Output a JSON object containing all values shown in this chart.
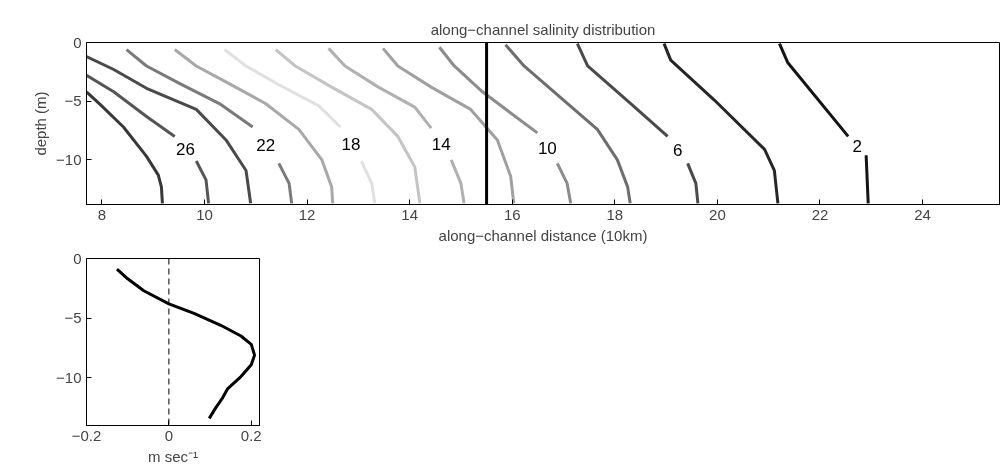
{
  "chart_data": [
    {
      "type": "line",
      "title": "along−channel salinity distribution",
      "xlabel": "along−channel distance (10km)",
      "ylabel": "depth (m)",
      "xlim": [
        7.7,
        25.5
      ],
      "ylim": [
        -13.8,
        0
      ],
      "xticks": [
        8,
        10,
        12,
        14,
        16,
        18,
        20,
        22,
        24
      ],
      "yticks": [
        0,
        -5,
        -10
      ],
      "grid": false,
      "line_style": "solid",
      "marker": "none",
      "series": [
        {
          "color": "#383838",
          "x": [
            7.7,
            7.97,
            8.42,
            8.87,
            9.1,
            9.16,
            9.18
          ],
          "values": [
            -4.2,
            -5.3,
            -7.2,
            -9.7,
            -11.3,
            -12.3,
            -13.7
          ]
        },
        {
          "name": "26",
          "color": "#555555",
          "x": [
            7.7,
            8.23,
            8.87,
            9.42,
            null,
            9.84,
            10.03,
            10.08
          ],
          "values": [
            -2.8,
            -4.2,
            -6.3,
            -8.0,
            null,
            -10.1,
            -11.7,
            -13.7
          ]
        },
        {
          "color": "#4a4a4a",
          "x": [
            7.7,
            8.23,
            8.87,
            9.84,
            10.42,
            10.81,
            10.9
          ],
          "values": [
            -1.2,
            -2.3,
            -3.9,
            -5.7,
            -8.3,
            -10.9,
            -13.7
          ]
        },
        {
          "name": "22",
          "color": "#7a7a7a",
          "x": [
            8.48,
            8.87,
            9.52,
            10.29,
            10.94,
            null,
            11.45,
            11.65,
            11.7
          ],
          "values": [
            -0.6,
            -2.0,
            -3.5,
            -5.2,
            -7.2,
            null,
            -10.3,
            -12.0,
            -13.7
          ]
        },
        {
          "color": "#a8a8a8",
          "x": [
            9.42,
            9.84,
            10.48,
            11.19,
            11.84,
            12.29,
            12.48,
            12.5
          ],
          "values": [
            -0.6,
            -2.0,
            -3.5,
            -5.2,
            -7.4,
            -10.0,
            -12.3,
            -13.7
          ]
        },
        {
          "name": "18",
          "color": "#e0e0e0",
          "x": [
            10.39,
            10.81,
            11.45,
            12.23,
            12.65,
            null,
            13.06,
            13.26,
            13.32
          ],
          "values": [
            -0.6,
            -2.0,
            -3.6,
            -5.4,
            -7.2,
            null,
            -10.1,
            -12.0,
            -13.7
          ]
        },
        {
          "color": "#c4c4c4",
          "x": [
            11.39,
            11.77,
            12.48,
            13.26,
            13.77,
            14.1,
            14.2
          ],
          "values": [
            -0.6,
            -2.0,
            -3.8,
            -5.7,
            -8.0,
            -10.6,
            -13.7
          ]
        },
        {
          "name": "14",
          "color": "#b0b0b0",
          "x": [
            12.42,
            12.74,
            13.39,
            14.1,
            14.42,
            null,
            14.81,
            15.0,
            15.06
          ],
          "values": [
            -0.5,
            -2.0,
            -3.8,
            -5.5,
            -7.3,
            null,
            -10.0,
            -12.0,
            -13.7
          ]
        },
        {
          "color": "#a0a0a0",
          "x": [
            13.48,
            13.77,
            14.42,
            15.19,
            15.71,
            15.97,
            16.03
          ],
          "values": [
            -0.5,
            -2.0,
            -3.8,
            -5.7,
            -8.3,
            -11.4,
            -13.7
          ]
        },
        {
          "name": "10",
          "color": "#8c8c8c",
          "x": [
            14.58,
            14.87,
            15.42,
            15.97,
            16.49,
            null,
            16.88,
            17.07,
            17.14
          ],
          "values": [
            -0.4,
            -2.0,
            -4.2,
            -6.0,
            -7.7,
            null,
            -10.3,
            -12.0,
            -13.7
          ]
        },
        {
          "color": "#6e6e6e",
          "x": [
            15.87,
            16.23,
            17.0,
            17.66,
            18.05,
            18.25,
            18.3
          ],
          "values": [
            -0.2,
            -2.0,
            -4.9,
            -7.4,
            -10.0,
            -12.3,
            -13.7
          ]
        },
        {
          "name": "6",
          "color": "#4a4a4a",
          "x": [
            17.27,
            17.47,
            18.31,
            19.03,
            null,
            19.42,
            19.58,
            19.62
          ],
          "values": [
            -0.1,
            -2.0,
            -5.2,
            -8.0,
            null,
            -10.3,
            -12.0,
            -13.7
          ]
        },
        {
          "color": "#262626",
          "x": [
            18.96,
            19.09,
            19.94,
            20.92,
            21.11,
            21.18
          ],
          "values": [
            -0.1,
            -1.5,
            -4.9,
            -9.1,
            -10.9,
            -13.7
          ]
        },
        {
          "name": "2",
          "color": "#141414",
          "x": [
            21.21,
            21.37,
            22.55,
            null,
            22.9,
            22.94
          ],
          "values": [
            -0.1,
            -1.7,
            -8.0,
            null,
            -9.6,
            -13.7
          ]
        }
      ],
      "ref_lines": [
        {
          "axis": "x",
          "value": 15.5,
          "color": "#000000",
          "line_style": "solid"
        }
      ]
    },
    {
      "type": "line",
      "xlabel": "m sec⁻¹",
      "xlim": [
        -0.2,
        0.22
      ],
      "ylim": [
        -14,
        0
      ],
      "xticks": [
        -0.2,
        0,
        0.2
      ],
      "yticks": [
        0,
        -5,
        -10
      ],
      "grid": false,
      "line_style": "solid",
      "marker": "none",
      "series": [
        {
          "color": "#000000",
          "x": [
            -0.126,
            -0.1,
            -0.061,
            0,
            0.061,
            0.126,
            0.175,
            0.2,
            0.208,
            0.2,
            0.175,
            0.143,
            0.13,
            0.114,
            0.098
          ],
          "values": [
            -0.9,
            -1.7,
            -2.7,
            -3.8,
            -4.6,
            -5.6,
            -6.5,
            -7.2,
            -8.1,
            -8.9,
            -9.9,
            -10.9,
            -11.7,
            -12.5,
            -13.4
          ]
        }
      ],
      "ref_lines": [
        {
          "axis": "x",
          "value": 0,
          "color": "#000000",
          "line_style": "dashed"
        }
      ]
    }
  ]
}
